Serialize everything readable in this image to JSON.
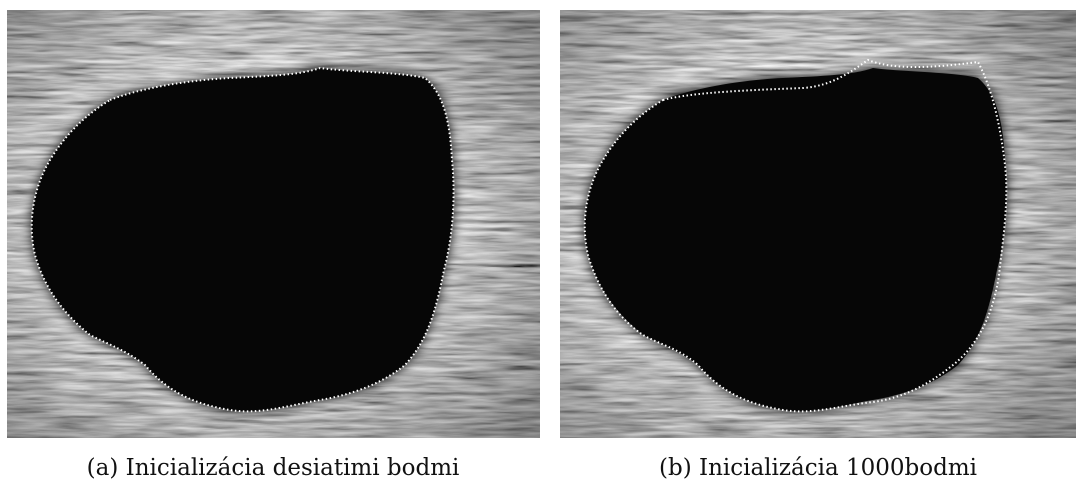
{
  "subfigures": [
    {
      "caption": "(a) Inicializácia desiatimi bodmi"
    },
    {
      "caption": "(b) Inicializácia 1000bodmi"
    }
  ]
}
